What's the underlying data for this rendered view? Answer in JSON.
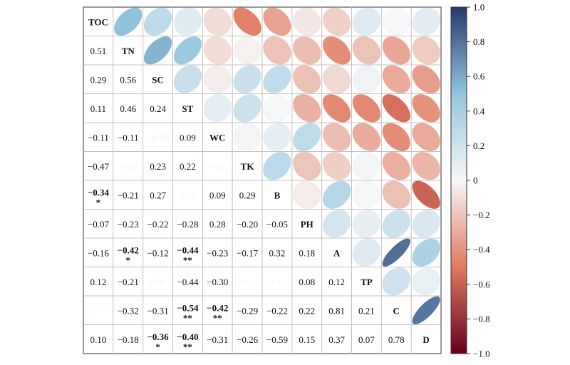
{
  "chart_data": {
    "type": "heatmap",
    "title": "",
    "variables": [
      "TOC",
      "TN",
      "SC",
      "ST",
      "WC",
      "TK",
      "B",
      "PH",
      "A",
      "TP",
      "C",
      "D"
    ],
    "lower_text": [
      [
        null,
        null,
        null,
        null,
        null,
        null,
        null,
        null,
        null,
        null,
        null,
        null
      ],
      [
        "0.51",
        null,
        null,
        null,
        null,
        null,
        null,
        null,
        null,
        null,
        null,
        null
      ],
      [
        "0.29",
        "0.56",
        null,
        null,
        null,
        null,
        null,
        null,
        null,
        null,
        null,
        null
      ],
      [
        "0.11",
        "0.46",
        "0.24",
        null,
        null,
        null,
        null,
        null,
        null,
        null,
        null,
        null
      ],
      [
        "−0.11",
        "−0.11",
        "−0.04",
        "0.09",
        null,
        null,
        null,
        null,
        null,
        null,
        null,
        null
      ],
      [
        "−0.47",
        "−0.03",
        "0.23",
        "0.22",
        "0.02",
        null,
        null,
        null,
        null,
        null,
        null,
        null
      ],
      [
        "−0.34",
        "−0.21",
        "0.27",
        "0.01",
        "0.09",
        "0.29",
        null,
        null,
        null,
        null,
        null,
        null
      ],
      [
        "−0.07",
        "−0.23",
        "−0.22",
        "−0.28",
        "0.28",
        "−0.20",
        "−0.05",
        null,
        null,
        null,
        null,
        null
      ],
      [
        "−0.16",
        "−0.42",
        "−0.12",
        "−0.44",
        "−0.23",
        "−0.17",
        "0.32",
        "0.18",
        null,
        null,
        null,
        null
      ],
      [
        "0.12",
        "−0.21",
        "0.04",
        "−0.44",
        "−0.30",
        "0.02",
        "0.01",
        "0.08",
        "0.12",
        null,
        null,
        null
      ],
      [
        "0.01",
        "−0.32",
        "−0.31",
        "−0.54",
        "−0.42",
        "−0.29",
        "−0.22",
        "0.22",
        "0.81",
        "0.21",
        null,
        null
      ],
      [
        "0.10",
        "−0.18",
        "−0.36",
        "−0.40",
        "−0.31",
        "−0.26",
        "−0.59",
        "0.15",
        "0.37",
        "0.07",
        "0.78",
        null
      ]
    ],
    "significance": [
      [
        null,
        null,
        null,
        null,
        null,
        null,
        null,
        null,
        null,
        null,
        null,
        null
      ],
      [
        null,
        null,
        null,
        null,
        null,
        null,
        null,
        null,
        null,
        null,
        null,
        null
      ],
      [
        null,
        null,
        null,
        null,
        null,
        null,
        null,
        null,
        null,
        null,
        null,
        null
      ],
      [
        null,
        null,
        null,
        null,
        null,
        null,
        null,
        null,
        null,
        null,
        null,
        null
      ],
      [
        null,
        null,
        null,
        null,
        null,
        null,
        null,
        null,
        null,
        null,
        null,
        null
      ],
      [
        null,
        null,
        null,
        null,
        null,
        null,
        null,
        null,
        null,
        null,
        null,
        null
      ],
      [
        "*",
        null,
        null,
        null,
        null,
        null,
        null,
        null,
        null,
        null,
        null,
        null
      ],
      [
        null,
        null,
        null,
        null,
        null,
        null,
        null,
        null,
        null,
        null,
        null,
        null
      ],
      [
        null,
        "*",
        null,
        "**",
        null,
        null,
        null,
        null,
        null,
        null,
        null,
        null
      ],
      [
        null,
        null,
        null,
        null,
        null,
        null,
        null,
        null,
        null,
        null,
        null,
        null
      ],
      [
        null,
        null,
        null,
        "**",
        "**",
        null,
        null,
        null,
        null,
        null,
        null,
        null
      ],
      [
        null,
        null,
        "*",
        "**",
        null,
        null,
        null,
        null,
        null,
        null,
        null,
        null
      ]
    ],
    "upper_values": [
      [
        null,
        0.51,
        0.29,
        0.11,
        -0.11,
        -0.47,
        -0.34,
        -0.07,
        -0.16,
        0.12,
        0.01,
        0.1
      ],
      [
        null,
        null,
        0.56,
        0.46,
        -0.11,
        -0.03,
        -0.21,
        -0.23,
        -0.42,
        -0.21,
        -0.32,
        -0.18
      ],
      [
        null,
        null,
        null,
        0.24,
        -0.04,
        0.23,
        0.27,
        -0.22,
        -0.12,
        0.04,
        -0.31,
        -0.36
      ],
      [
        null,
        null,
        null,
        null,
        0.09,
        0.22,
        0.01,
        -0.28,
        -0.44,
        -0.44,
        -0.54,
        -0.4
      ],
      [
        null,
        null,
        null,
        null,
        null,
        0.02,
        0.09,
        0.28,
        -0.23,
        -0.3,
        -0.42,
        -0.31
      ],
      [
        null,
        null,
        null,
        null,
        null,
        null,
        0.29,
        -0.2,
        -0.17,
        0.02,
        -0.29,
        -0.26
      ],
      [
        null,
        null,
        null,
        null,
        null,
        null,
        null,
        -0.05,
        0.32,
        0.01,
        -0.22,
        -0.59
      ],
      [
        null,
        null,
        null,
        null,
        null,
        null,
        null,
        null,
        0.18,
        0.08,
        0.22,
        0.15
      ],
      [
        null,
        null,
        null,
        null,
        null,
        null,
        null,
        null,
        null,
        0.12,
        0.81,
        0.37
      ],
      [
        null,
        null,
        null,
        null,
        null,
        null,
        null,
        null,
        null,
        null,
        0.21,
        0.07
      ],
      [
        null,
        null,
        null,
        null,
        null,
        null,
        null,
        null,
        null,
        null,
        null,
        0.78
      ],
      [
        null,
        null,
        null,
        null,
        null,
        null,
        null,
        null,
        null,
        null,
        null,
        null
      ]
    ],
    "colorbar": {
      "range": [
        -1.0,
        1.0
      ],
      "ticks": [
        "1.0",
        "0.8",
        "0.6",
        "0.4",
        "0.2",
        "0",
        "−0.2",
        "−0.4",
        "−0.6",
        "−0.8",
        "−1.0"
      ],
      "colors": {
        "neg_end": "#67001f",
        "neg_mid": "#e07a5f",
        "zero": "#f7f7f7",
        "pos_mid": "#92c5de",
        "pos_end": "#263a6b"
      }
    },
    "grid_color": "#c8bfc3"
  }
}
